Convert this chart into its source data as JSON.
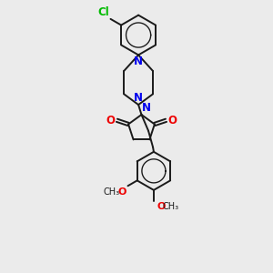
{
  "background_color": "#ebebeb",
  "bond_color": "#1a1a1a",
  "N_color": "#0000ee",
  "O_color": "#ee0000",
  "Cl_color": "#00bb00",
  "line_width": 1.4,
  "font_size": 8.5,
  "xlim": [
    -1.6,
    1.8
  ],
  "ylim": [
    -3.6,
    3.4
  ]
}
